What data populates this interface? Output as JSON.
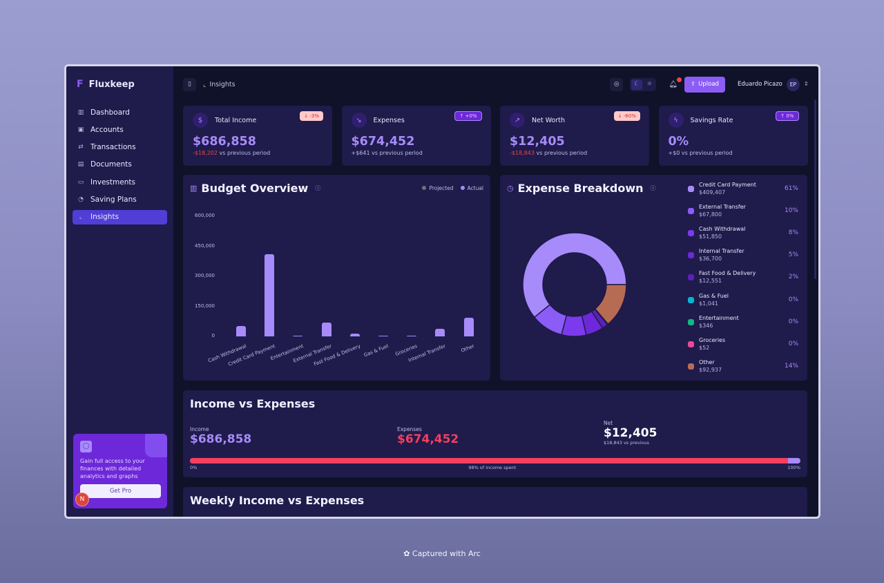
{
  "app": {
    "name": "Fluxkeep"
  },
  "sidebar": {
    "items": [
      {
        "label": "Dashboard",
        "icon": "bar-chart-icon"
      },
      {
        "label": "Accounts",
        "icon": "wallet-icon"
      },
      {
        "label": "Transactions",
        "icon": "arrows-icon"
      },
      {
        "label": "Documents",
        "icon": "file-icon"
      },
      {
        "label": "Investments",
        "icon": "briefcase-icon"
      },
      {
        "label": "Saving Plans",
        "icon": "piggy-icon"
      },
      {
        "label": "Insights",
        "icon": "line-chart-icon",
        "active": true
      }
    ],
    "promo": {
      "text": "Gain full access to your finances with detailed analytics and graphs",
      "button": "Get Pro",
      "badge": "N"
    }
  },
  "header": {
    "breadcrumb": "Insights",
    "upload": "Upload",
    "user": "Eduardo Picazo",
    "initials": "EP"
  },
  "stats": [
    {
      "title": "Total Income",
      "value": "$686,858",
      "change": "-$18,202",
      "suffix": " vs previous period",
      "badge": "↓ -3%",
      "trend": "neg"
    },
    {
      "title": "Expenses",
      "value": "$674,452",
      "change": "+$641",
      "suffix": " vs previous period",
      "badge": "↑ +0%",
      "trend": "pos"
    },
    {
      "title": "Net Worth",
      "value": "$12,405",
      "change": "-$18,843",
      "suffix": " vs previous period",
      "badge": "↓ -60%",
      "trend": "neg"
    },
    {
      "title": "Savings Rate",
      "value": "0%",
      "change": "+$0",
      "suffix": " vs previous period",
      "badge": "↑ 0%",
      "trend": "pos"
    }
  ],
  "budget": {
    "title": "Budget Overview",
    "legend_projected": "Projected",
    "legend_actual": "Actual"
  },
  "chart_data": {
    "type": "bar",
    "title": "Budget Overview",
    "categories": [
      "Cash Withdrawal",
      "Credit Card Payment",
      "Entertainment",
      "External Transfer",
      "Fast Food & Delivery",
      "Gas & Fuel",
      "Groceries",
      "Internal Transfer",
      "Other"
    ],
    "series": [
      {
        "name": "Actual",
        "values": [
          51850,
          409407,
          346,
          67800,
          12551,
          1041,
          52,
          36700,
          92937
        ]
      }
    ],
    "yticks": [
      "0",
      "150,000",
      "300,000",
      "450,000",
      "600,000"
    ],
    "ylim": [
      0,
      600000
    ],
    "legend": "top-right"
  },
  "breakdown": {
    "title": "Expense Breakdown",
    "items": [
      {
        "name": "Credit Card Payment",
        "amount": "$409,407",
        "pct": "61%",
        "value": 409407,
        "color": "#a78bfa"
      },
      {
        "name": "External Transfer",
        "amount": "$67,800",
        "pct": "10%",
        "value": 67800,
        "color": "#8b5cf6"
      },
      {
        "name": "Cash Withdrawal",
        "amount": "$51,850",
        "pct": "8%",
        "value": 51850,
        "color": "#7c3aed"
      },
      {
        "name": "Internal Transfer",
        "amount": "$36,700",
        "pct": "5%",
        "value": 36700,
        "color": "#6d28d9"
      },
      {
        "name": "Fast Food & Delivery",
        "amount": "$12,551",
        "pct": "2%",
        "value": 12551,
        "color": "#5b21b6"
      },
      {
        "name": "Gas & Fuel",
        "amount": "$1,041",
        "pct": "0%",
        "value": 1041,
        "color": "#06b6d4"
      },
      {
        "name": "Entertainment",
        "amount": "$346",
        "pct": "0%",
        "value": 346,
        "color": "#10b981"
      },
      {
        "name": "Groceries",
        "amount": "$52",
        "pct": "0%",
        "value": 52,
        "color": "#ec4899"
      },
      {
        "name": "Other",
        "amount": "$92,937",
        "pct": "14%",
        "value": 92937,
        "color": "#b86b53"
      }
    ]
  },
  "income_expenses": {
    "title": "Income vs Expenses",
    "income_label": "Income",
    "income": "$686,858",
    "expenses_label": "Expenses",
    "expenses": "$674,452",
    "net_label": "Net",
    "net": "$12,405",
    "net_sub": "$18,843 vs previous",
    "spent_pct": 98,
    "start": "0%",
    "mid": "98% of income spent",
    "end": "100%"
  },
  "weekly": {
    "title": "Weekly Income vs Expenses"
  },
  "footer": {
    "captured": "Captured with Arc"
  }
}
